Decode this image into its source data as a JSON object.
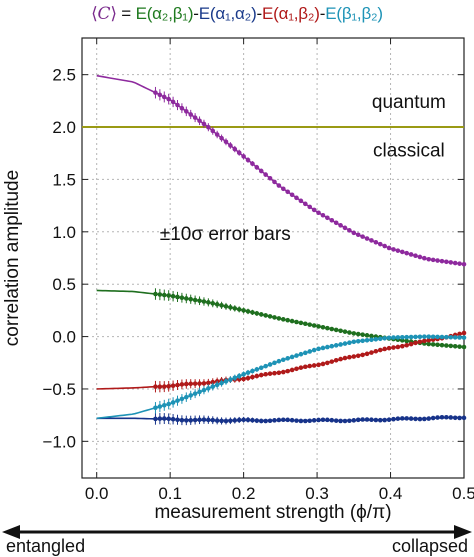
{
  "chart_data": {
    "type": "line",
    "title_parts": [
      {
        "text": "⟨",
        "cls": "angle"
      },
      {
        "text": "C",
        "cls": "c"
      },
      {
        "text": "⟩",
        "cls": "angle"
      },
      {
        "text": " = ",
        "cls": "eq"
      },
      {
        "text": "E(α₂,β₁)",
        "cls": "t1"
      },
      {
        "text": "-",
        "cls": "op"
      },
      {
        "text": "E(α₁,α₂)",
        "cls": "t2"
      },
      {
        "text": "-",
        "cls": "op"
      },
      {
        "text": "E(α₁,β₂)",
        "cls": "t3"
      },
      {
        "text": "-",
        "cls": "op"
      },
      {
        "text": "E(β₁,β₂)",
        "cls": "t4"
      }
    ],
    "xlabel": "measurement strength (ϕ/π)",
    "ylabel": "correlation amplitude",
    "xlim": [
      -0.02,
      0.5
    ],
    "ylim": [
      -1.35,
      2.85
    ],
    "xticks": [
      0.0,
      0.1,
      0.2,
      0.3,
      0.4,
      0.5
    ],
    "xtick_labels": [
      "0.0",
      "0.1",
      "0.2",
      "0.3",
      "0.4",
      "0.5"
    ],
    "yticks": [
      -1.0,
      -0.5,
      0.0,
      0.5,
      1.0,
      1.5,
      2.0,
      2.5
    ],
    "ytick_labels": [
      "−1.0",
      "−0.5",
      "0.0",
      "0.5",
      "1.0",
      "1.5",
      "2.0",
      "2.5"
    ],
    "grid": true,
    "annotations": {
      "quantum": "quantum",
      "classical": "classical",
      "errorbars": "±10σ error bars",
      "left_arrow": "entangled",
      "right_arrow": "collapsed"
    },
    "classical_bound": {
      "y": 2.0,
      "color": "#9a9a14"
    },
    "series": [
      {
        "id": "C",
        "color": "#8e2a9e",
        "curve": "C",
        "data_x_range": [
          0.08,
          0.5
        ],
        "offset": 0.0
      },
      {
        "id": "E_a2b1",
        "color": "#1f6f1f",
        "curve": "green",
        "data_x_range": [
          0.08,
          0.5
        ],
        "offset": 0.0
      },
      {
        "id": "E_a1a2",
        "color": "#17338a",
        "curve": "blue",
        "data_x_range": [
          0.08,
          0.5
        ],
        "offset": 0.02
      },
      {
        "id": "E_a1b2",
        "color": "#b01a1a",
        "curve": "red",
        "data_x_range": [
          0.08,
          0.5
        ],
        "offset": -0.015
      },
      {
        "id": "E_b1b2",
        "color": "#1e93b6",
        "curve": "cyan",
        "data_x_range": [
          0.08,
          0.5
        ],
        "offset": 0.0
      }
    ],
    "curve_points": {
      "x": [
        0.0,
        0.05,
        0.1,
        0.15,
        0.2,
        0.25,
        0.3,
        0.35,
        0.4,
        0.45,
        0.5
      ],
      "C": [
        2.49,
        2.43,
        2.26,
        2.01,
        1.72,
        1.43,
        1.19,
        0.99,
        0.84,
        0.74,
        0.69
      ],
      "green": [
        0.44,
        0.43,
        0.39,
        0.33,
        0.25,
        0.17,
        0.1,
        0.03,
        -0.02,
        -0.07,
        -0.1
      ],
      "blue": [
        -0.78,
        -0.78,
        -0.79,
        -0.8,
        -0.8,
        -0.8,
        -0.8,
        -0.8,
        -0.79,
        -0.78,
        -0.77
      ],
      "red": [
        -0.5,
        -0.49,
        -0.47,
        -0.44,
        -0.4,
        -0.34,
        -0.27,
        -0.19,
        -0.11,
        -0.04,
        0.03
      ],
      "cyan": [
        -0.78,
        -0.74,
        -0.64,
        -0.5,
        -0.36,
        -0.23,
        -0.12,
        -0.05,
        -0.01,
        0.0,
        -0.01
      ]
    }
  }
}
